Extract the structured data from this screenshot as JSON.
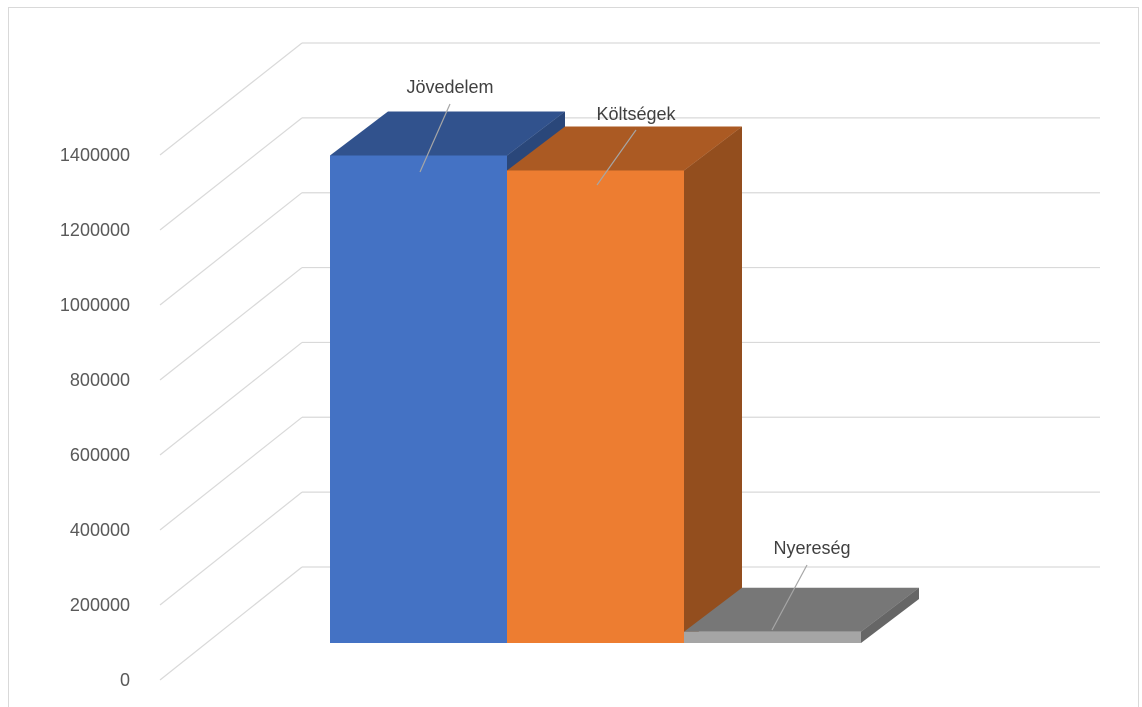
{
  "chart_data": {
    "type": "bar",
    "variant": "3d-column",
    "title": "",
    "xlabel": "",
    "ylabel": "",
    "categories": [
      "Jövedelem",
      "Költségek",
      "Nyereség"
    ],
    "values": [
      1300000,
      1260000,
      30000
    ],
    "colors": [
      "#4472c4",
      "#ed7d31",
      "#a5a5a5"
    ],
    "ylim": [
      0,
      1400000
    ],
    "yticks": [
      "0",
      "200000",
      "400000",
      "600000",
      "800000",
      "1000000",
      "1200000",
      "1400000"
    ],
    "grid": true,
    "legend": "none",
    "data_labels": [
      "Jövedelem",
      "Költségek",
      "Nyereség"
    ]
  }
}
